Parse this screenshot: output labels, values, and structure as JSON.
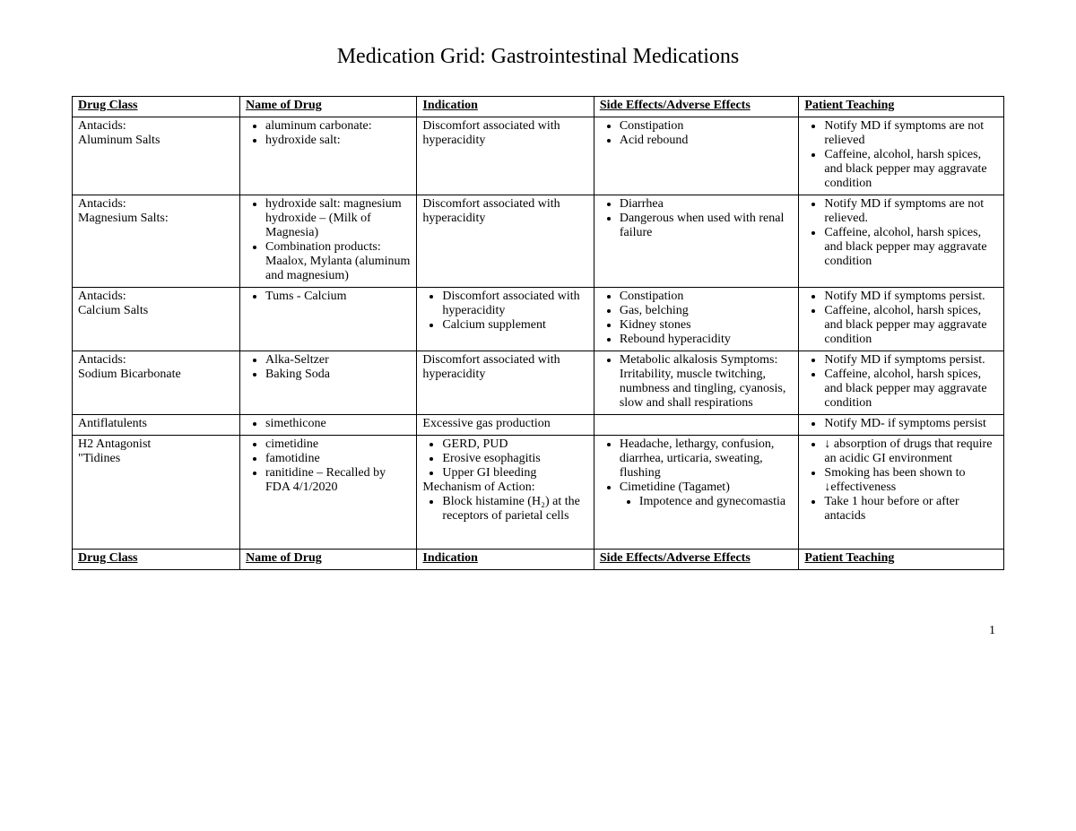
{
  "title": "Medication Grid:  Gastrointestinal Medications",
  "columns": [
    "Drug Class",
    "Name of Drug",
    "Indication",
    "Side Effects/Adverse Effects",
    "Patient Teaching"
  ],
  "footer_columns": [
    "Drug Class",
    "Name of Drug",
    "Indication",
    "Side Effects/Adverse Effects",
    "Patient Teaching"
  ],
  "page_number": "1",
  "rows": [
    {
      "drug_class": "Antacids:\nAluminum Salts",
      "name": [
        "aluminum carbonate:",
        "hydroxide salt:"
      ],
      "indication_text": "Discomfort associated with hyperacidity",
      "side_effects": [
        "Constipation",
        "Acid rebound"
      ],
      "teaching": [
        "Notify MD if symptoms are not relieved",
        "Caffeine, alcohol, harsh spices, and black pepper may aggravate condition"
      ]
    },
    {
      "drug_class": "Antacids:\nMagnesium Salts:",
      "name": [
        "hydroxide salt: magnesium hydroxide – (Milk of Magnesia)",
        "Combination products: Maalox, Mylanta (aluminum and magnesium)"
      ],
      "indication_text": "Discomfort associated with hyperacidity",
      "side_effects": [
        "Diarrhea",
        "Dangerous when used with renal failure"
      ],
      "teaching": [
        "Notify  MD if symptoms are not relieved.",
        "Caffeine, alcohol, harsh spices, and black pepper may aggravate condition"
      ]
    },
    {
      "drug_class": "Antacids:\nCalcium Salts",
      "name": [
        "Tums - Calcium"
      ],
      "indication_list": [
        "Discomfort associated with hyperacidity",
        "Calcium supplement"
      ],
      "side_effects": [
        "Constipation",
        "Gas, belching",
        "Kidney stones",
        "Rebound hyperacidity"
      ],
      "teaching": [
        "Notify MD if symptoms persist.",
        "Caffeine, alcohol, harsh spices, and black pepper may aggravate condition"
      ]
    },
    {
      "drug_class": "Antacids:\nSodium Bicarbonate",
      "name": [
        "Alka-Seltzer",
        "Baking Soda"
      ],
      "indication_text": "Discomfort associated with hyperacidity",
      "side_effects": [
        "Metabolic alkalosis Symptoms: Irritability, muscle twitching, numbness and tingling, cyanosis, slow and shall respirations"
      ],
      "teaching": [
        "Notify MD if symptoms persist.",
        "Caffeine, alcohol, harsh spices, and black pepper may aggravate condition"
      ]
    },
    {
      "drug_class": "Antiflatulents",
      "name": [
        "simethicone"
      ],
      "indication_text": "Excessive gas production",
      "side_effects": [],
      "teaching": [
        "Notify MD- if symptoms persist"
      ]
    },
    {
      "drug_class": "H2 Antagonist\n\"Tidines",
      "name": [
        "cimetidine",
        "famotidine",
        "ranitidine – Recalled by FDA 4/1/2020"
      ],
      "indication_list": [
        "GERD, PUD",
        "Erosive esophagitis",
        "Upper GI bleeding"
      ],
      "indication_trailer": "Mechanism of Action:",
      "indication_list2": [
        "Block histamine (H₂) at the receptors of  parietal cells"
      ],
      "side_effects": [
        "Headache, lethargy, confusion, diarrhea, urticaria, sweating, flushing"
      ],
      "side_effects_nested": {
        "parent": "Cimetidine (Tagamet)",
        "children": [
          "Impotence and gynecomastia"
        ]
      },
      "teaching": [
        "↓ absorption of drugs that require an acidic GI environment",
        "Smoking has been shown to ↓effectiveness",
        "Take 1 hour before or after antacids"
      ],
      "extra_bottom_space": true
    }
  ],
  "style": {
    "font_family": "Times New Roman",
    "title_fontsize": 24,
    "body_fontsize": 14,
    "border_color": "#000000",
    "background_color": "#ffffff",
    "text_color": "#000000",
    "col_widths_pct": [
      18,
      19,
      19,
      22,
      22
    ]
  }
}
